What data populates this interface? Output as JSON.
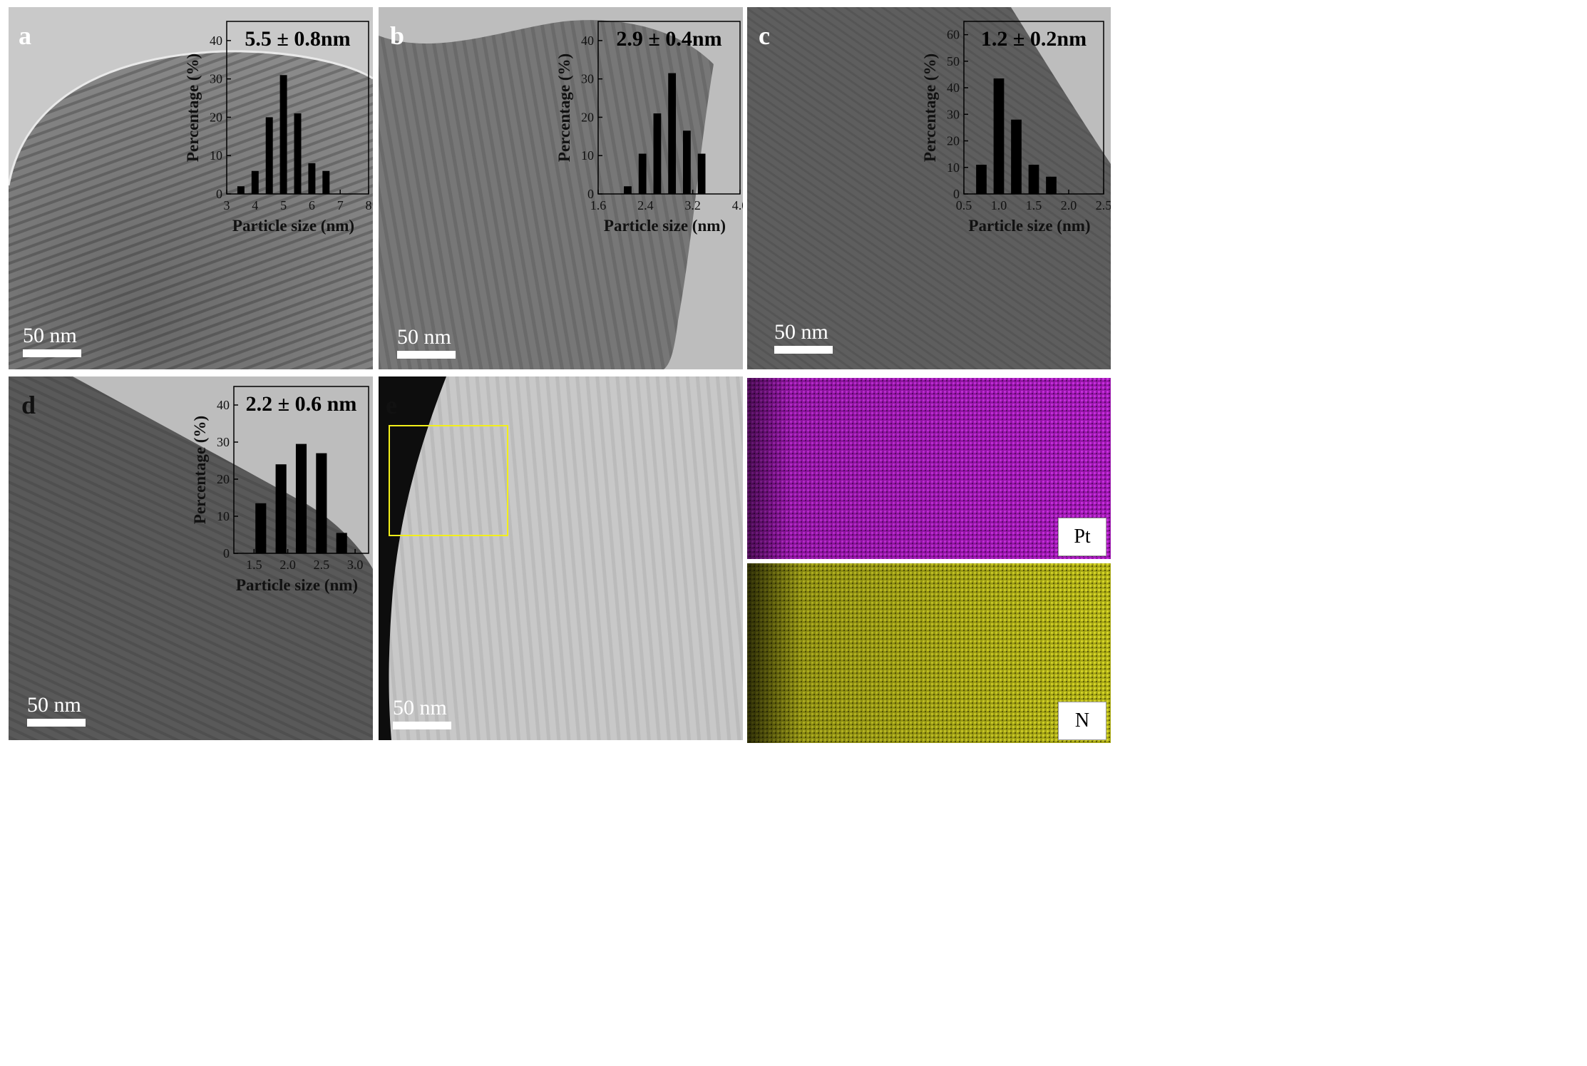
{
  "panels": {
    "a": {
      "letter": "a",
      "scale": "50 nm"
    },
    "b": {
      "letter": "b",
      "scale": "50 nm"
    },
    "c": {
      "letter": "c",
      "scale": "50 nm"
    },
    "d": {
      "letter": "d",
      "scale": "50 nm"
    },
    "e": {
      "letter": "e",
      "scale": "50 nm"
    }
  },
  "eds": {
    "pt_label": "Pt",
    "n_label": "N",
    "pt_color": "#b01cc4",
    "n_color": "#c7c71a",
    "roi_color": "#f2ee1a"
  },
  "chart_data": [
    {
      "id": "a",
      "type": "bar",
      "title": "5.5 ± 0.8nm",
      "xlabel": "Particle size (nm)",
      "ylabel": "Percentage (%)",
      "xlim": [
        3,
        8
      ],
      "ylim": [
        0,
        45
      ],
      "xticks": [
        3,
        4,
        5,
        6,
        7,
        8
      ],
      "yticks": [
        0,
        10,
        20,
        30,
        40
      ],
      "x": [
        3.5,
        4.0,
        4.5,
        5.0,
        5.5,
        6.0,
        6.5,
        7.0
      ],
      "values": [
        2,
        6,
        20,
        31,
        21,
        8,
        6,
        0
      ],
      "bar_width": 0.25
    },
    {
      "id": "b",
      "type": "bar",
      "title": "2.9 ± 0.4nm",
      "xlabel": "Particle size (nm)",
      "ylabel": "Percentage (%)",
      "xlim": [
        1.6,
        4.0
      ],
      "ylim": [
        0,
        45
      ],
      "xticks": [
        1.6,
        2.4,
        3.2,
        4.0
      ],
      "yticks": [
        0,
        10,
        20,
        30,
        40
      ],
      "x": [
        2.1,
        2.35,
        2.6,
        2.85,
        3.1,
        3.35
      ],
      "values": [
        2,
        10.5,
        21,
        31.5,
        16.5,
        10.5
      ],
      "bar_width": 0.13
    },
    {
      "id": "c",
      "type": "bar",
      "title": "1.2 ± 0.2nm",
      "xlabel": "Particle size (nm)",
      "ylabel": "Percentage (%)",
      "xlim": [
        0.5,
        2.5
      ],
      "ylim": [
        0,
        65
      ],
      "xticks": [
        0.5,
        1.0,
        1.5,
        2.0,
        2.5
      ],
      "yticks": [
        0,
        10,
        20,
        30,
        40,
        50,
        60
      ],
      "x": [
        0.75,
        1.0,
        1.25,
        1.5,
        1.75
      ],
      "values": [
        11,
        43.5,
        28,
        11,
        6.5
      ],
      "bar_width": 0.15
    },
    {
      "id": "d",
      "type": "bar",
      "title": "2.2 ± 0.6 nm",
      "xlabel": "Particle size (nm)",
      "ylabel": "Percentage (%)",
      "xlim": [
        1.2,
        3.2
      ],
      "ylim": [
        0,
        45
      ],
      "xticks": [
        1.5,
        2.0,
        2.5,
        3.0
      ],
      "yticks": [
        0,
        10,
        20,
        30,
        40
      ],
      "x": [
        1.6,
        1.9,
        2.2,
        2.5,
        2.8
      ],
      "values": [
        13.5,
        24,
        29.5,
        27,
        5.5
      ],
      "bar_width": 0.16
    }
  ]
}
